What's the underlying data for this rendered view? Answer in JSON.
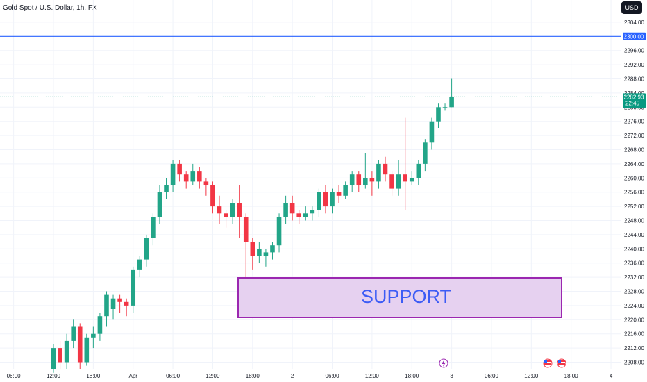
{
  "header": {
    "symbol_title": "Gold Spot / U.S. Dollar, 1h, FX",
    "currency_button": "USD"
  },
  "colors": {
    "up": "#22a588",
    "down": "#f23645",
    "resistance": "#2962ff",
    "support_fill": "#e6d1f0",
    "support_border": "#9b27b0",
    "support_text": "#3d5cf5",
    "price_tag": "#089981"
  },
  "chart_data": {
    "type": "candlestick",
    "title": "Gold Spot / U.S. Dollar, 1h, FX",
    "ylim": [
      2205,
      2308
    ],
    "y_ticks": [
      2208,
      2212,
      2216,
      2220,
      2224,
      2228,
      2232,
      2236,
      2240,
      2244,
      2248,
      2252,
      2256,
      2260,
      2264,
      2268,
      2272,
      2276,
      2280,
      2284,
      2288,
      2292,
      2296,
      2304
    ],
    "x_ticks": [
      {
        "label": "06:00",
        "idx": -6
      },
      {
        "label": "12:00",
        "idx": 0
      },
      {
        "label": "18:00",
        "idx": 6
      },
      {
        "label": "Apr",
        "idx": 12
      },
      {
        "label": "06:00",
        "idx": 18
      },
      {
        "label": "12:00",
        "idx": 24
      },
      {
        "label": "18:00",
        "idx": 30
      },
      {
        "label": "2",
        "idx": 36
      },
      {
        "label": "06:00",
        "idx": 42
      },
      {
        "label": "12:00",
        "idx": 48
      },
      {
        "label": "18:00",
        "idx": 54
      },
      {
        "label": "3",
        "idx": 60
      },
      {
        "label": "06:00",
        "idx": 66
      },
      {
        "label": "12:00",
        "idx": 72
      },
      {
        "label": "18:00",
        "idx": 78
      },
      {
        "label": "4",
        "idx": 84
      }
    ],
    "candles": [
      [
        2206,
        2212,
        2205,
        2213
      ],
      [
        2212,
        2208,
        2206,
        2214
      ],
      [
        2208,
        2214,
        2206,
        2216
      ],
      [
        2214,
        2218,
        2212,
        2220
      ],
      [
        2218,
        2208,
        2206,
        2219
      ],
      [
        2208,
        2215,
        2207,
        2216
      ],
      [
        2215,
        2216,
        2212,
        2218
      ],
      [
        2216,
        2221,
        2214,
        2222
      ],
      [
        2221,
        2227,
        2218,
        2228
      ],
      [
        2223,
        2226,
        2220,
        2227
      ],
      [
        2226,
        2225,
        2222,
        2227
      ],
      [
        2225,
        2224,
        2221,
        2226
      ],
      [
        2224,
        2234,
        2222,
        2235
      ],
      [
        2234,
        2237,
        2232,
        2238
      ],
      [
        2237,
        2243,
        2235,
        2244
      ],
      [
        2243,
        2249,
        2241,
        2250
      ],
      [
        2249,
        2256,
        2247,
        2258
      ],
      [
        2256,
        2258,
        2254,
        2260
      ],
      [
        2258,
        2264,
        2256,
        2265
      ],
      [
        2264,
        2261,
        2259,
        2265
      ],
      [
        2261,
        2259,
        2257,
        2262
      ],
      [
        2259,
        2262,
        2258,
        2264
      ],
      [
        2262,
        2259,
        2257,
        2263
      ],
      [
        2259,
        2258,
        2255,
        2260
      ],
      [
        2258,
        2252,
        2250,
        2259
      ],
      [
        2252,
        2250,
        2247,
        2255
      ],
      [
        2250,
        2249,
        2246,
        2251
      ],
      [
        2249,
        2253,
        2247,
        2254
      ],
      [
        2253,
        2249,
        2243,
        2258
      ],
      [
        2249,
        2242,
        2232,
        2250
      ],
      [
        2242,
        2238,
        2234,
        2243
      ],
      [
        2238,
        2240,
        2236,
        2242
      ],
      [
        2238,
        2239,
        2235,
        2240
      ],
      [
        2239,
        2241,
        2237,
        2242
      ],
      [
        2241,
        2249,
        2239,
        2250
      ],
      [
        2249,
        2253,
        2247,
        2255
      ],
      [
        2253,
        2250,
        2248,
        2255
      ],
      [
        2250,
        2249,
        2247,
        2251
      ],
      [
        2249,
        2250,
        2248,
        2252
      ],
      [
        2250,
        2251,
        2248,
        2252
      ],
      [
        2251,
        2256,
        2249,
        2257
      ],
      [
        2256,
        2252,
        2250,
        2258
      ],
      [
        2252,
        2256,
        2250,
        2257
      ],
      [
        2256,
        2255,
        2253,
        2258
      ],
      [
        2255,
        2258,
        2254,
        2259
      ],
      [
        2258,
        2261,
        2256,
        2262
      ],
      [
        2261,
        2258,
        2256,
        2262
      ],
      [
        2258,
        2260,
        2257,
        2267
      ],
      [
        2260,
        2259,
        2255,
        2262
      ],
      [
        2259,
        2264,
        2257,
        2265
      ],
      [
        2264,
        2261,
        2259,
        2266
      ],
      [
        2261,
        2257,
        2255,
        2262
      ],
      [
        2257,
        2261,
        2255,
        2265
      ],
      [
        2261,
        2259,
        2251,
        2277
      ],
      [
        2259,
        2260,
        2258,
        2262
      ],
      [
        2260,
        2264,
        2258,
        2265
      ],
      [
        2264,
        2270,
        2262,
        2271
      ],
      [
        2270,
        2276,
        2268,
        2277
      ],
      [
        2276,
        2280,
        2274,
        2281
      ],
      [
        2280,
        2280,
        2279,
        2281
      ],
      [
        2280,
        2283,
        2280,
        2288
      ]
    ],
    "resistance_level": 2300,
    "last_price": 2282.93
  },
  "labels": {
    "resistance_tag": "2300.00",
    "price_tag": "2282.93",
    "countdown": "22:45",
    "support": "SUPPORT"
  },
  "icons": [
    "lightning-event-icon",
    "us-flag-icon",
    "us-flag-icon"
  ]
}
